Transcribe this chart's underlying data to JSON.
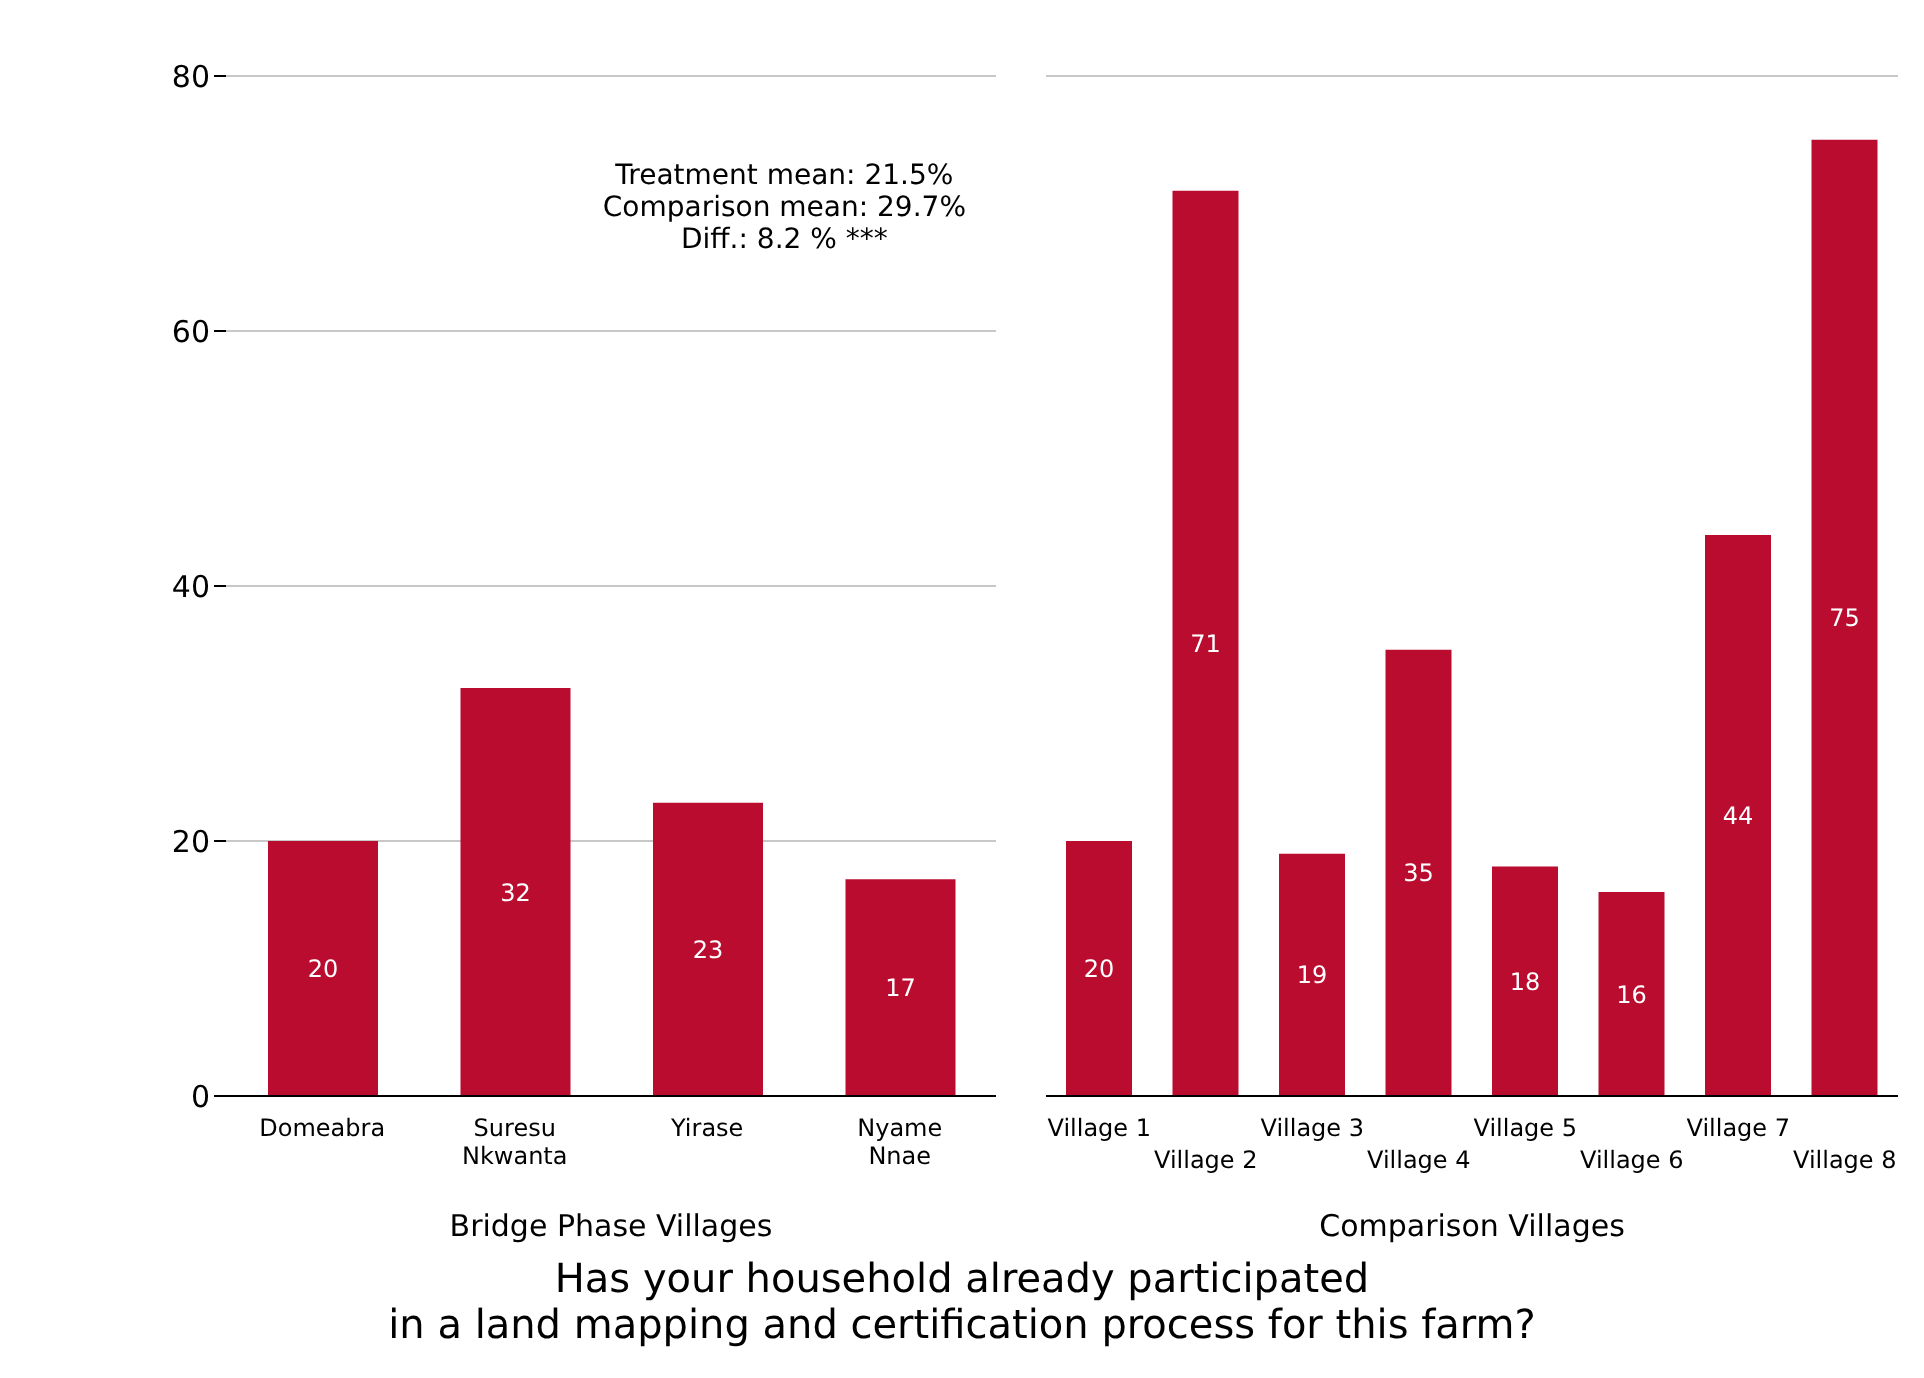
{
  "chart_data": [
    {
      "type": "bar",
      "title": "Has your household already participated\nin a land mapping and certification process for this farm?",
      "xlabel": "Bridge Phase Villages",
      "categories": [
        "Domeabra",
        "Suresu Nkwanta",
        "Yirase",
        "Nyame Nnae"
      ],
      "values": [
        20,
        32,
        23,
        17
      ],
      "color": "#ba0c2f",
      "data_labels": true,
      "ylim": [
        0,
        80
      ],
      "yticks": [
        0,
        20,
        40,
        60,
        80
      ],
      "grid": "y",
      "annotations": [
        "Treatment mean: 21.5%\nComparison mean: 29.7%\nDiff.: 8.2 % ***"
      ]
    },
    {
      "type": "bar",
      "xlabel": "Comparison Villages",
      "categories": [
        "Village 1",
        "Village 2",
        "Village 3",
        "Village 4",
        "Village 5",
        "Village 6",
        "Village 7",
        "Village 8"
      ],
      "values": [
        20,
        71,
        19,
        35,
        18,
        16,
        44,
        75
      ],
      "color": "#ba0c2f",
      "data_labels": true,
      "ylim": [
        0,
        80
      ],
      "yticks": [
        0,
        20,
        40,
        60,
        80
      ],
      "grid": "y",
      "tick_labels": "x"
    }
  ]
}
